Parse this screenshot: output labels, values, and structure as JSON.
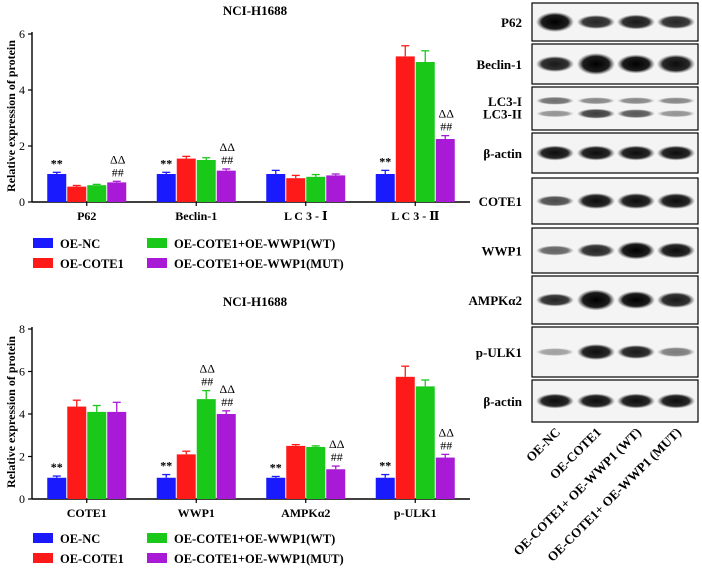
{
  "chart_data": [
    {
      "type": "bar",
      "title": "NCI-H1688",
      "ylabel": "Relative expression of protein",
      "ylim": [
        0,
        6
      ],
      "yticks": [
        0,
        2,
        4,
        6
      ],
      "categories": [
        "P62",
        "Beclin-1",
        "L C 3 - Ⅰ",
        "L C 3 - Ⅱ"
      ],
      "series": [
        {
          "name": "OE-NC",
          "values": [
            1.0,
            1.0,
            1.0,
            1.0
          ],
          "errors": [
            0.06,
            0.06,
            0.13,
            0.13
          ]
        },
        {
          "name": "OE-COTE1",
          "values": [
            0.55,
            1.55,
            0.85,
            5.2
          ],
          "errors": [
            0.04,
            0.08,
            0.1,
            0.38
          ]
        },
        {
          "name": "OE-COTE1+OE-WWP1(WT)",
          "values": [
            0.6,
            1.5,
            0.9,
            5.0
          ],
          "errors": [
            0.03,
            0.08,
            0.08,
            0.4
          ]
        },
        {
          "name": "OE-COTE1+OE-WWP1(MUT)",
          "values": [
            0.7,
            1.12,
            0.95,
            2.25
          ],
          "errors": [
            0.04,
            0.06,
            0.05,
            0.12
          ]
        }
      ],
      "annotations": [
        [
          "**",
          "",
          "",
          "ΔΔ ##"
        ],
        [
          "**",
          "",
          "",
          "ΔΔ ##"
        ],
        [
          "",
          "",
          "",
          ""
        ],
        [
          "**",
          "",
          "",
          "ΔΔ ##"
        ]
      ],
      "legend": "below"
    },
    {
      "type": "bar",
      "title": "NCI-H1688",
      "ylabel": "Relative expression of protein",
      "ylim": [
        0,
        8
      ],
      "yticks": [
        0,
        2,
        4,
        6,
        8
      ],
      "categories": [
        "COTE1",
        "WWP1",
        "AMPKα2",
        "p-ULK1"
      ],
      "series": [
        {
          "name": "OE-NC",
          "values": [
            1.0,
            1.0,
            1.0,
            1.0
          ],
          "errors": [
            0.08,
            0.15,
            0.06,
            0.15
          ]
        },
        {
          "name": "OE-COTE1",
          "values": [
            4.35,
            2.1,
            2.5,
            5.75
          ],
          "errors": [
            0.3,
            0.15,
            0.06,
            0.5
          ]
        },
        {
          "name": "OE-COTE1+OE-WWP1(WT)",
          "values": [
            4.1,
            4.7,
            2.45,
            5.3
          ],
          "errors": [
            0.3,
            0.4,
            0.05,
            0.3
          ]
        },
        {
          "name": "OE-COTE1+OE-WWP1(MUT)",
          "values": [
            4.1,
            4.0,
            1.4,
            1.95
          ],
          "errors": [
            0.45,
            0.15,
            0.15,
            0.15
          ]
        }
      ],
      "annotations": [
        [
          "**",
          "",
          "",
          ""
        ],
        [
          "**",
          "",
          "ΔΔ ##",
          "ΔΔ ##"
        ],
        [
          "**",
          "",
          "",
          "ΔΔ ##"
        ],
        [
          "**",
          "",
          "",
          "ΔΔ ##"
        ]
      ],
      "legend": "below"
    }
  ],
  "colors": {
    "OE-NC": "#1a1aff",
    "OE-COTE1": "#ff1a1a",
    "OE-COTE1+OE-WWP1(WT)": "#1ac81a",
    "OE-COTE1+OE-WWP1(MUT)": "#a81ad6"
  },
  "blot": {
    "rows": [
      "P62",
      "Beclin-1",
      "LC3-I",
      "LC3-II",
      "β-actin",
      "COTE1",
      "WWP1",
      "AMPKα2",
      "p-ULK1",
      "β-actin"
    ],
    "lanes": [
      "OE-NC",
      "OE-COTE1",
      "OE-COTE1+ OE-WWP1 (WT)",
      "OE-COTE1+ OE-WWP1 (MUT)"
    ]
  }
}
